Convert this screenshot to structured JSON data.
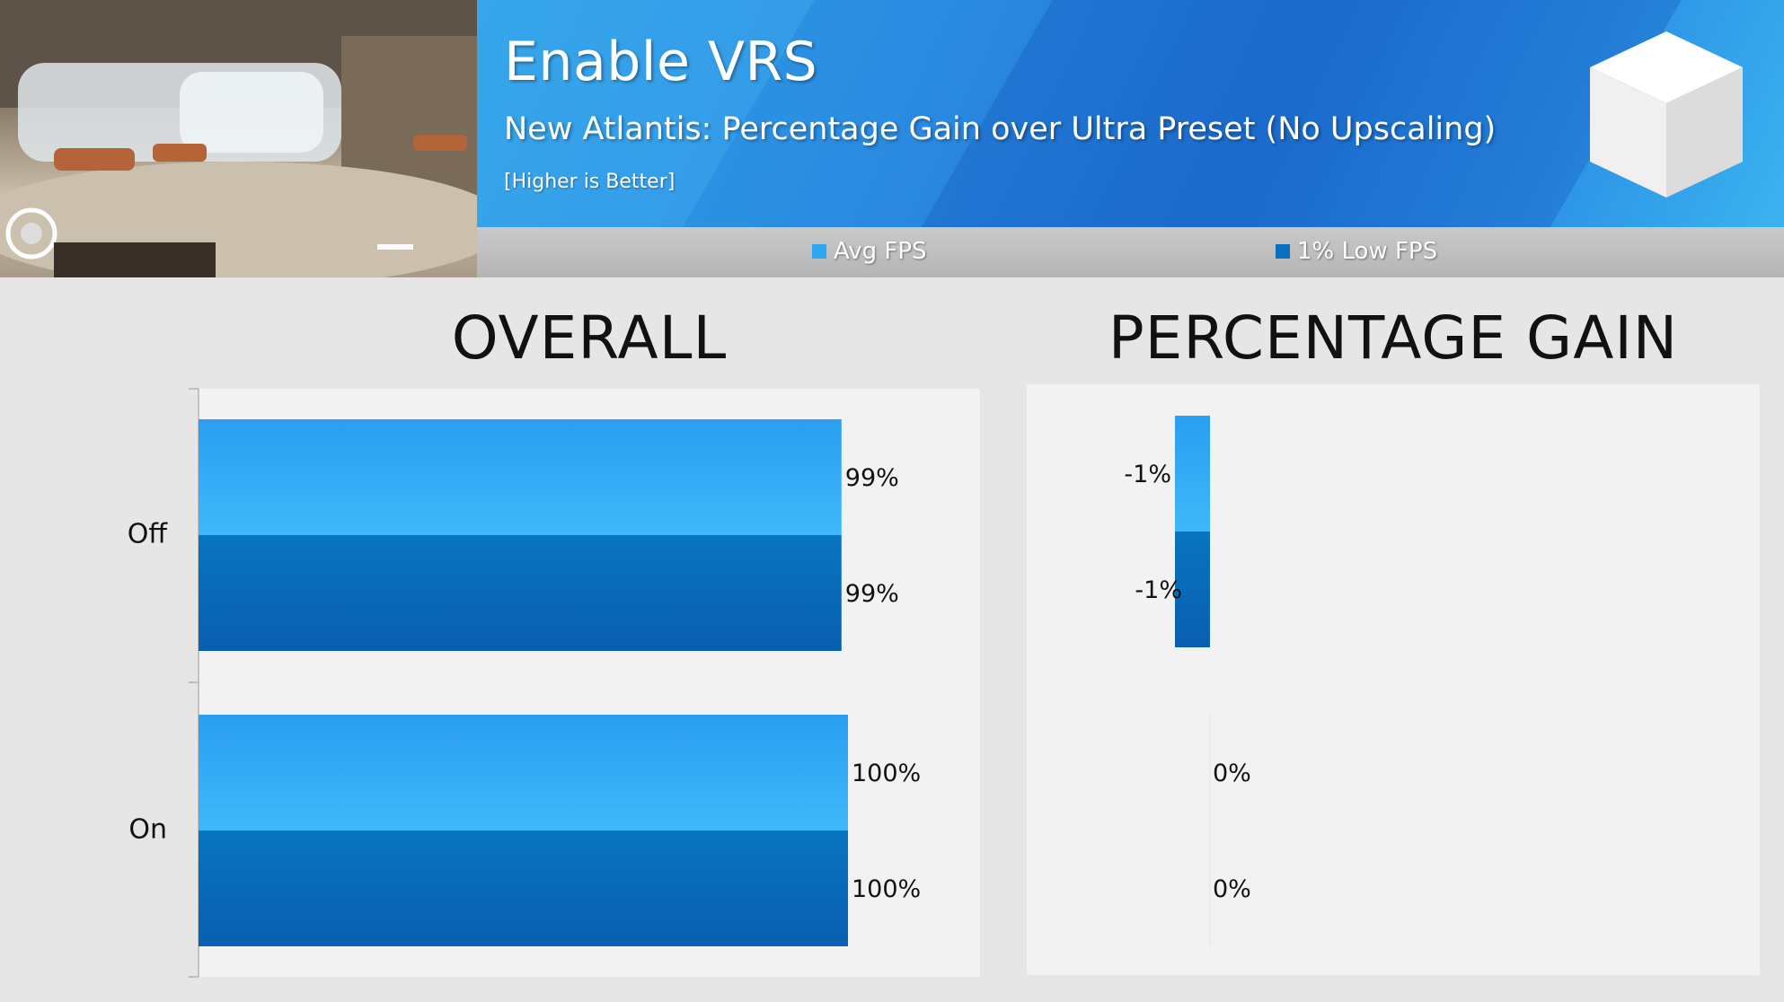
{
  "header": {
    "title": "Enable VRS",
    "subtitle": "New Atlantis: Percentage Gain over Ultra Preset (No Upscaling)",
    "note": "[Higher is Better]"
  },
  "legend": [
    {
      "label": "Avg FPS",
      "color": "#2ea8f2"
    },
    {
      "label": "1% Low FPS",
      "color": "#0a6fbf"
    }
  ],
  "colors": {
    "avg": "#2ea8f2",
    "low": "#0a6fbf",
    "banner": "#2a8ae0",
    "background": "#e6e6e6"
  },
  "chart_data": [
    {
      "type": "bar",
      "orientation": "horizontal",
      "title": "OVERALL",
      "categories": [
        "Off",
        "On"
      ],
      "series": [
        {
          "name": "Avg FPS",
          "values": [
            99,
            100
          ],
          "labels": [
            "99%",
            "100%"
          ]
        },
        {
          "name": "1% Low FPS",
          "values": [
            99,
            100
          ],
          "labels": [
            "99%",
            "100%"
          ]
        }
      ],
      "xlim": [
        0,
        120
      ],
      "unit": "%"
    },
    {
      "type": "bar",
      "orientation": "horizontal",
      "title": "PERCENTAGE GAIN",
      "categories": [
        "Off",
        "On"
      ],
      "series": [
        {
          "name": "Avg FPS",
          "values": [
            -1,
            0
          ],
          "labels": [
            "-1%",
            "0%"
          ]
        },
        {
          "name": "1% Low FPS",
          "values": [
            -1,
            0
          ],
          "labels": [
            "-1%",
            "0%"
          ]
        }
      ],
      "xlim": [
        -4,
        14
      ],
      "unit": "%"
    }
  ]
}
